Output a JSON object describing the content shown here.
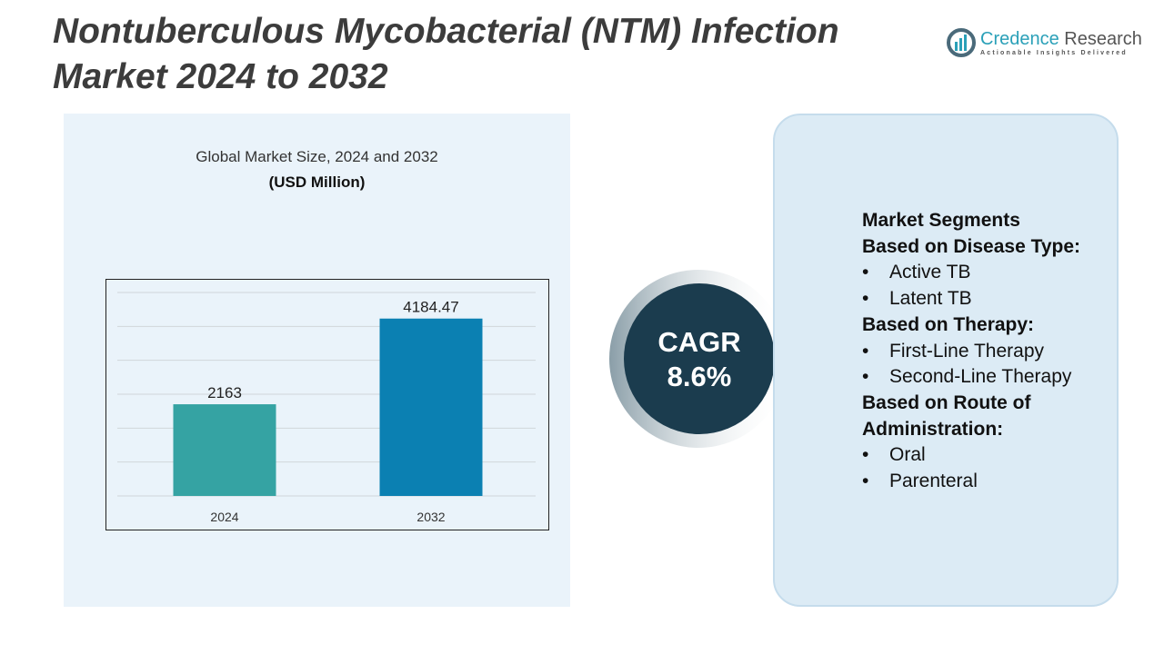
{
  "title": "Nontuberculous Mycobacterial (NTM) Infection Market 2024 to 2032",
  "logo": {
    "name_part1": "Credence",
    "name_part2": " Research",
    "tagline": "Actionable Insights Delivered"
  },
  "chart_data": {
    "type": "bar",
    "title": "Global Market Size, 2024 and 2032",
    "subtitle": "(USD Million)",
    "categories": [
      "2024",
      "2032"
    ],
    "values": [
      2163,
      4184.47
    ],
    "value_labels": [
      "2163",
      "4184.47"
    ],
    "colors": [
      "#35a3a3",
      "#0b80b2"
    ],
    "ylim": [
      0,
      4800
    ],
    "grid": true,
    "grid_step": 800
  },
  "cagr": {
    "label": "CAGR",
    "value": "8.6%"
  },
  "segments": {
    "heading": "Market Segments",
    "groups": [
      {
        "title": "Based on Disease Type:",
        "items": [
          "Active TB",
          "Latent TB"
        ]
      },
      {
        "title": "Based on Therapy:",
        "items": [
          "First-Line Therapy",
          "Second-Line Therapy"
        ]
      },
      {
        "title": "Based on Route of Administration:",
        "items": [
          "Oral",
          "Parenteral"
        ]
      }
    ]
  }
}
